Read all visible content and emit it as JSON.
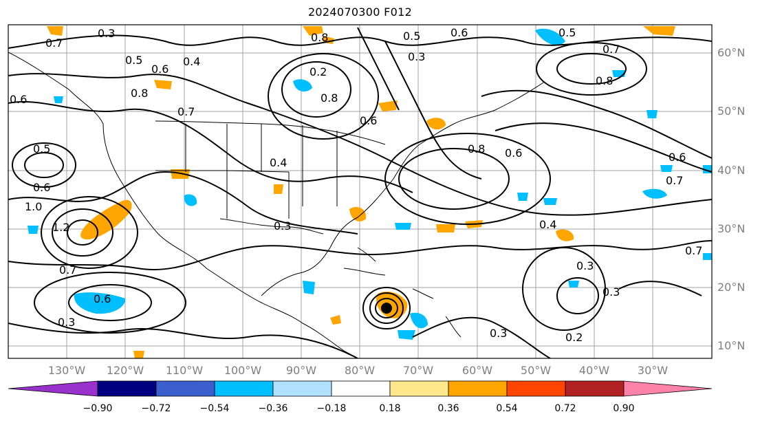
{
  "title": "2024070300 F012",
  "map": {
    "latitude_labels": [
      "60°N",
      "50°N",
      "40°N",
      "30°N",
      "20°N",
      "10°N"
    ],
    "longitude_labels": [
      "130°W",
      "120°W",
      "110°W",
      "100°W",
      "90°W",
      "80°W",
      "70°W",
      "60°W",
      "50°W",
      "40°W",
      "30°W"
    ],
    "contour_labels": [
      "0.3",
      "0.7",
      "0.5",
      "0.6",
      "0.4",
      "0.8",
      "0.5",
      "0.6",
      "0.8",
      "0.3",
      "0.2",
      "0.8",
      "0.6",
      "0.7",
      "0.8",
      "0.5",
      "0.7",
      "0.6",
      "0.7",
      "0.5",
      "0.6",
      "1.0",
      "1.2",
      "0.6",
      "0.7",
      "0.6",
      "0.3",
      "0.4",
      "0.3",
      "0.4",
      "0.3",
      "0.3",
      "0.2",
      "0.3",
      "0.7",
      "0.8",
      "0.6"
    ],
    "colors": {
      "land_border": "#000000",
      "grid": "#a0a0a0",
      "positive_fill": "#ffa500",
      "negative_fill": "#00bfff"
    }
  },
  "colorbar": {
    "ticks": [
      "−0.90",
      "−0.72",
      "−0.54",
      "−0.36",
      "−0.18",
      "0.18",
      "0.36",
      "0.54",
      "0.72",
      "0.90"
    ],
    "colors": [
      "#9932cc",
      "#000080",
      "#3a5fcd",
      "#00bfff",
      "#b0e2ff",
      "#ffffff",
      "#ffe88c",
      "#ffa500",
      "#ff4500",
      "#b22222",
      "#ff82ab"
    ]
  }
}
